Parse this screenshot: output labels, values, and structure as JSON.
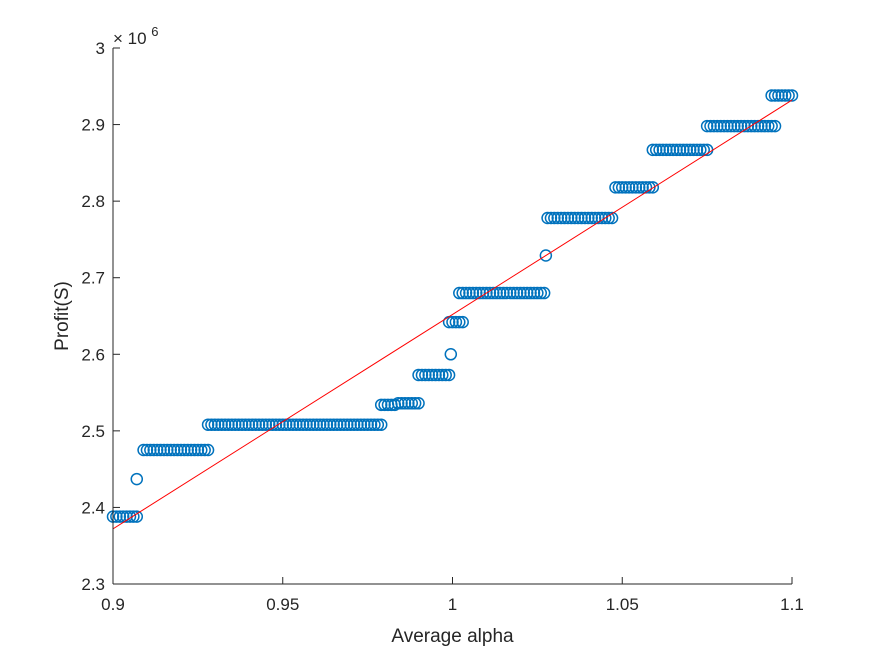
{
  "chart_data": {
    "type": "scatter",
    "title": "",
    "xlabel": "Average alpha",
    "ylabel": "Profit(S)",
    "y_exponent_label": "× 10",
    "y_exponent_power": "6",
    "xlim": [
      0.9,
      1.1
    ],
    "ylim": [
      2.3,
      3.0
    ],
    "x_ticks": [
      0.9,
      0.95,
      1.0,
      1.05,
      1.1
    ],
    "x_tick_labels": [
      "0.9",
      "0.95",
      "1",
      "1.05",
      "1.1"
    ],
    "y_ticks": [
      2.3,
      2.4,
      2.5,
      2.6,
      2.7,
      2.8,
      2.9,
      3.0
    ],
    "y_tick_labels": [
      "2.3",
      "2.4",
      "2.5",
      "2.6",
      "2.7",
      "2.8",
      "2.9",
      "3"
    ],
    "grid": false,
    "colors": {
      "points": "#0072BD",
      "fit_line": "#FF0000",
      "axes": "#262626"
    },
    "scatter_clusters": [
      {
        "y": 2.388,
        "x_start": 0.9,
        "x_end": 0.907,
        "step": 0.001
      },
      {
        "y": 2.475,
        "x_start": 0.909,
        "x_end": 0.928,
        "step": 0.001
      },
      {
        "y": 2.508,
        "x_start": 0.928,
        "x_end": 0.979,
        "step": 0.001
      },
      {
        "y": 2.534,
        "x_start": 0.979,
        "x_end": 0.983,
        "step": 0.001
      },
      {
        "y": 2.536,
        "x_start": 0.984,
        "x_end": 0.99,
        "step": 0.001
      },
      {
        "y": 2.573,
        "x_start": 0.99,
        "x_end": 0.999,
        "step": 0.001
      },
      {
        "y": 2.642,
        "x_start": 0.999,
        "x_end": 1.003,
        "step": 0.001
      },
      {
        "y": 2.68,
        "x_start": 1.002,
        "x_end": 1.027,
        "step": 0.001
      },
      {
        "y": 2.778,
        "x_start": 1.028,
        "x_end": 1.047,
        "step": 0.001
      },
      {
        "y": 2.818,
        "x_start": 1.048,
        "x_end": 1.059,
        "step": 0.001
      },
      {
        "y": 2.867,
        "x_start": 1.059,
        "x_end": 1.075,
        "step": 0.001
      },
      {
        "y": 2.898,
        "x_start": 1.075,
        "x_end": 1.095,
        "step": 0.001
      },
      {
        "y": 2.938,
        "x_start": 1.094,
        "x_end": 1.1,
        "step": 0.001
      }
    ],
    "scatter_points": [
      {
        "x": 0.907,
        "y": 2.437
      },
      {
        "x": 0.9995,
        "y": 2.6
      },
      {
        "x": 1.0275,
        "y": 2.729
      }
    ],
    "fit_line": {
      "x": [
        0.9,
        1.1
      ],
      "y": [
        2.372,
        2.932
      ]
    }
  }
}
